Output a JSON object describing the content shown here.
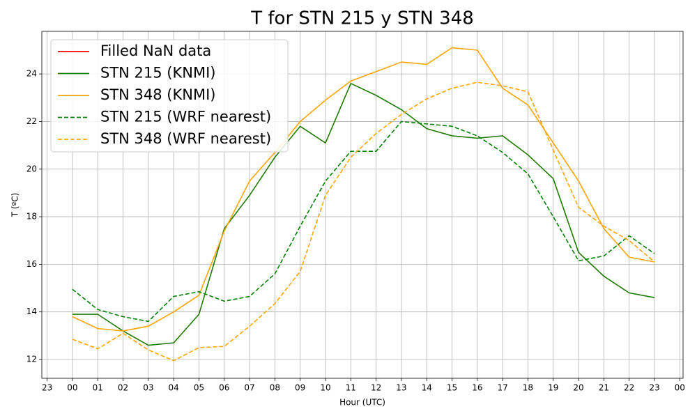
{
  "chart_data": {
    "type": "line",
    "title": "T for STN 215 y STN 348",
    "xlabel": "Hour (UTC)",
    "ylabel": "T (ºC)",
    "x": [
      0,
      1,
      2,
      3,
      4,
      5,
      6,
      7,
      8,
      9,
      10,
      11,
      12,
      13,
      14,
      15,
      16,
      17,
      18,
      19,
      20,
      21,
      22,
      23
    ],
    "series": [
      {
        "name": "Filled NaN data",
        "color": "#ff0000",
        "linestyle": "solid",
        "values": [
          null,
          null,
          null,
          null,
          null,
          null,
          null,
          null,
          null,
          null,
          null,
          null,
          null,
          null,
          null,
          null,
          null,
          null,
          null,
          null,
          null,
          null,
          null,
          null
        ]
      },
      {
        "name": "STN 215 (KNMI)",
        "color": "#1f7a00",
        "linestyle": "solid",
        "values": [
          13.9,
          13.9,
          13.2,
          12.6,
          12.7,
          13.9,
          17.5,
          18.9,
          20.5,
          21.8,
          21.1,
          23.6,
          23.1,
          22.5,
          21.7,
          21.4,
          21.3,
          21.4,
          20.6,
          19.6,
          16.5,
          15.5,
          14.8,
          14.6
        ]
      },
      {
        "name": "STN 348 (KNMI)",
        "color": "#ffa500",
        "linestyle": "solid",
        "values": [
          13.8,
          13.3,
          13.2,
          13.4,
          14.0,
          14.7,
          17.4,
          19.5,
          20.7,
          22.0,
          22.9,
          23.7,
          24.1,
          24.5,
          24.4,
          25.1,
          25.0,
          23.4,
          22.7,
          21.1,
          19.5,
          17.5,
          16.3,
          16.1
        ]
      },
      {
        "name": "STN 215 (WRF nearest)",
        "color": "#008000",
        "linestyle": "dashed",
        "values": [
          14.95,
          14.1,
          13.8,
          13.6,
          14.65,
          14.85,
          14.45,
          14.65,
          15.6,
          17.6,
          19.5,
          20.75,
          20.75,
          22.0,
          21.9,
          21.8,
          21.4,
          20.7,
          19.8,
          18.0,
          16.15,
          16.35,
          17.2,
          16.45
        ]
      },
      {
        "name": "STN 348 (WRF nearest)",
        "color": "#ffa500",
        "linestyle": "dashed",
        "values": [
          12.85,
          12.45,
          13.1,
          12.4,
          11.95,
          12.5,
          12.55,
          13.4,
          14.35,
          15.7,
          18.9,
          20.5,
          21.5,
          22.3,
          22.95,
          23.4,
          23.65,
          23.5,
          23.25,
          20.8,
          18.4,
          17.6,
          17.0,
          16.1
        ]
      }
    ],
    "xlim": [
      -1.21,
      24.13
    ],
    "xticks": [
      {
        "value": -1,
        "label": "23"
      },
      {
        "value": 0,
        "label": "00"
      },
      {
        "value": 1,
        "label": "01"
      },
      {
        "value": 2,
        "label": "02"
      },
      {
        "value": 3,
        "label": "03"
      },
      {
        "value": 4,
        "label": "04"
      },
      {
        "value": 5,
        "label": "05"
      },
      {
        "value": 6,
        "label": "06"
      },
      {
        "value": 7,
        "label": "07"
      },
      {
        "value": 8,
        "label": "08"
      },
      {
        "value": 9,
        "label": "09"
      },
      {
        "value": 10,
        "label": "10"
      },
      {
        "value": 11,
        "label": "11"
      },
      {
        "value": 12,
        "label": "12"
      },
      {
        "value": 13,
        "label": "13"
      },
      {
        "value": 14,
        "label": "14"
      },
      {
        "value": 15,
        "label": "15"
      },
      {
        "value": 16,
        "label": "16"
      },
      {
        "value": 17,
        "label": "17"
      },
      {
        "value": 18,
        "label": "18"
      },
      {
        "value": 19,
        "label": "19"
      },
      {
        "value": 20,
        "label": "20"
      },
      {
        "value": 21,
        "label": "21"
      },
      {
        "value": 22,
        "label": "22"
      },
      {
        "value": 23,
        "label": "23"
      },
      {
        "value": 24,
        "label": "00"
      }
    ],
    "ylim": [
      11.21,
      25.79
    ],
    "yticks": [
      12,
      14,
      16,
      18,
      20,
      22,
      24
    ],
    "grid": true,
    "legend": "upper left"
  }
}
